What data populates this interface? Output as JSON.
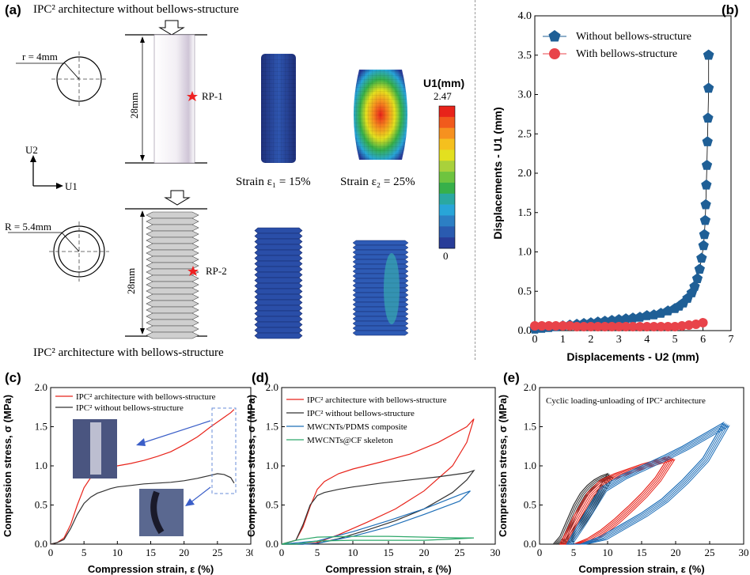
{
  "panel_a": {
    "label": "(a)",
    "top_caption": "IPC² architecture without bellows-structure",
    "bottom_caption": "IPC² architecture with bellows-structure",
    "r_label": "r = 4mm",
    "R_label": "R = 5.4mm",
    "height_top": "28mm",
    "height_bottom": "28mm",
    "rp1": "RP-1",
    "rp2": "RP-2",
    "axis_u2": "U2",
    "axis_u1": "U1",
    "strain1": "Strain ε₁ = 15%",
    "strain2": "Strain ε₂ = 25%",
    "colorbar_title": "U1(mm)",
    "colorbar_max": "2.47",
    "colorbar_min": "0",
    "colorbar_colors": [
      "#e8231a",
      "#f15a1c",
      "#f6911f",
      "#f5c01e",
      "#e3e01f",
      "#a9d13b",
      "#6ec43f",
      "#37b04a",
      "#2aa8a1",
      "#28a5d8",
      "#2c7fc4",
      "#2a5bb0",
      "#283c98"
    ]
  },
  "chart_data": [
    {
      "id": "b",
      "label": "(b)",
      "type": "scatter",
      "xlabel": "Displacements - U2 (mm)",
      "ylabel": "Displacements - U1 (mm)",
      "xlim": [
        0,
        7
      ],
      "ylim": [
        0,
        4.0
      ],
      "xticks": [
        "0",
        "1",
        "2",
        "3",
        "4",
        "5",
        "6",
        "7"
      ],
      "yticks": [
        "0.0",
        "0.5",
        "1.0",
        "1.5",
        "2.0",
        "2.5",
        "3.0",
        "3.5",
        "4.0"
      ],
      "legend_position": "top-right",
      "series": [
        {
          "name": "Without bellows-structure",
          "color": "#1f5f96",
          "marker": "pentagon",
          "x": [
            0,
            0.25,
            0.5,
            0.75,
            1,
            1.25,
            1.5,
            1.75,
            2,
            2.25,
            2.5,
            2.75,
            3,
            3.25,
            3.5,
            3.75,
            4,
            4.25,
            4.5,
            4.75,
            5,
            5.15,
            5.3,
            5.45,
            5.6,
            5.7,
            5.8,
            5.88,
            5.95,
            6.02,
            6.05,
            6.08,
            6.1,
            6.12,
            6.14,
            6.16,
            6.18,
            6.2,
            6.2,
            6.2,
            6.2,
            6.2,
            6.2
          ],
          "y": [
            0.02,
            0.03,
            0.04,
            0.05,
            0.06,
            0.07,
            0.08,
            0.09,
            0.1,
            0.11,
            0.12,
            0.13,
            0.14,
            0.15,
            0.16,
            0.17,
            0.19,
            0.2,
            0.22,
            0.25,
            0.28,
            0.31,
            0.35,
            0.41,
            0.48,
            0.56,
            0.66,
            0.78,
            0.92,
            1.08,
            1.22,
            1.4,
            1.6,
            1.85,
            2.1,
            2.4,
            2.7,
            3.08,
            3.5,
            3.5,
            3.5,
            3.5,
            3.5
          ]
        },
        {
          "name": "With bellows-structure",
          "color": "#e8434a",
          "marker": "circle",
          "x": [
            0,
            0.25,
            0.5,
            0.75,
            1,
            1.25,
            1.5,
            1.75,
            2,
            2.25,
            2.5,
            2.75,
            3,
            3.25,
            3.5,
            3.75,
            4,
            4.25,
            4.5,
            4.75,
            5,
            5.25,
            5.5,
            5.75,
            6.0
          ],
          "y": [
            0.06,
            0.06,
            0.06,
            0.06,
            0.06,
            0.06,
            0.05,
            0.05,
            0.05,
            0.05,
            0.05,
            0.05,
            0.05,
            0.05,
            0.05,
            0.05,
            0.05,
            0.05,
            0.05,
            0.05,
            0.05,
            0.06,
            0.07,
            0.08,
            0.1
          ]
        }
      ]
    },
    {
      "id": "c",
      "label": "(c)",
      "type": "line",
      "xlabel": "Compression strain, ε (%)",
      "ylabel": "Compression stress, σ (MPa)",
      "xlim": [
        0,
        30
      ],
      "ylim": [
        0,
        2.0
      ],
      "xticks": [
        "0",
        "5",
        "10",
        "15",
        "20",
        "25",
        "30"
      ],
      "yticks": [
        "0.0",
        "0.5",
        "1.0",
        "1.5",
        "2.0"
      ],
      "legend_position": "top-left",
      "series": [
        {
          "name": "IPC² architecture with bellows-structure",
          "color": "#e8231a",
          "x": [
            0,
            1,
            2,
            3,
            4,
            5,
            6,
            7,
            8,
            9,
            10,
            12,
            14,
            16,
            18,
            20,
            22,
            24,
            25,
            26,
            27,
            27.5
          ],
          "y": [
            0,
            0.02,
            0.08,
            0.25,
            0.5,
            0.72,
            0.85,
            0.92,
            0.96,
            0.98,
            1.0,
            1.03,
            1.07,
            1.12,
            1.18,
            1.27,
            1.37,
            1.5,
            1.56,
            1.62,
            1.68,
            1.72
          ]
        },
        {
          "name": "IPC² without bellows-structure",
          "color": "#333333",
          "x": [
            0,
            1,
            2,
            3,
            4,
            5,
            6,
            7,
            8,
            9,
            10,
            12,
            14,
            16,
            18,
            20,
            22,
            24,
            25,
            26,
            27,
            27.5
          ],
          "y": [
            0,
            0.02,
            0.06,
            0.2,
            0.38,
            0.52,
            0.6,
            0.65,
            0.68,
            0.71,
            0.73,
            0.75,
            0.77,
            0.78,
            0.79,
            0.81,
            0.84,
            0.88,
            0.9,
            0.89,
            0.85,
            0.78
          ]
        }
      ]
    },
    {
      "id": "d",
      "label": "(d)",
      "type": "line",
      "xlabel": "Compression strain, ε (%)",
      "ylabel": "Compression stress, σ (MPa)",
      "xlim": [
        0,
        30
      ],
      "ylim": [
        0,
        2.0
      ],
      "xticks": [
        "0",
        "5",
        "10",
        "15",
        "20",
        "25",
        "30"
      ],
      "yticks": [
        "0.0",
        "0.5",
        "1.0",
        "1.5",
        "2.0"
      ],
      "legend_position": "top-left",
      "series": [
        {
          "name": "IPC² architecture with bellows-structure",
          "color": "#e8231a",
          "x": [
            0,
            2,
            3,
            4,
            5,
            6,
            8,
            10,
            14,
            18,
            22,
            26,
            27,
            26,
            24,
            20,
            16,
            12,
            8,
            5,
            3
          ],
          "y": [
            0,
            0.05,
            0.22,
            0.48,
            0.7,
            0.8,
            0.9,
            0.96,
            1.05,
            1.15,
            1.3,
            1.5,
            1.6,
            1.3,
            1.0,
            0.68,
            0.45,
            0.28,
            0.12,
            0.02,
            0
          ]
        },
        {
          "name": "IPC² without bellows-structure",
          "color": "#333333",
          "x": [
            0,
            2,
            3,
            4,
            5,
            6,
            8,
            10,
            14,
            18,
            22,
            26,
            27,
            26,
            24,
            20,
            16,
            12,
            8,
            5,
            3
          ],
          "y": [
            0,
            0.05,
            0.25,
            0.5,
            0.62,
            0.66,
            0.7,
            0.73,
            0.78,
            0.82,
            0.86,
            0.91,
            0.94,
            0.82,
            0.66,
            0.45,
            0.3,
            0.18,
            0.07,
            0.01,
            0
          ]
        },
        {
          "name": "MWCNTs/PDMS composite",
          "color": "#1f6fb8",
          "x": [
            0,
            5,
            10,
            15,
            20,
            25,
            26.5,
            25,
            20,
            15,
            10,
            5,
            3
          ],
          "y": [
            0,
            0.04,
            0.16,
            0.3,
            0.45,
            0.63,
            0.68,
            0.55,
            0.38,
            0.22,
            0.1,
            0.01,
            0
          ]
        },
        {
          "name": "MWCNTs@CF skeleton",
          "color": "#2ea86a",
          "x": [
            0,
            2,
            5,
            10,
            15,
            20,
            25,
            27,
            25,
            20,
            15,
            10,
            5,
            2
          ],
          "y": [
            0,
            0.05,
            0.09,
            0.1,
            0.1,
            0.09,
            0.08,
            0.08,
            0.07,
            0.05,
            0.05,
            0.05,
            0.04,
            0
          ]
        }
      ]
    },
    {
      "id": "e",
      "label": "(e)",
      "type": "line",
      "title": "Cyclic loading-unloading of IPC² architecture",
      "xlabel": "Compression strain, ε (%)",
      "ylabel": "Compression stress, σ (MPa)",
      "xlim": [
        0,
        30
      ],
      "ylim": [
        0,
        2.0
      ],
      "xticks": [
        "0",
        "5",
        "10",
        "15",
        "20",
        "25",
        "30"
      ],
      "yticks": [
        "0.0",
        "0.5",
        "1.0",
        "1.5",
        "2.0"
      ],
      "series": [
        {
          "color": "#333333",
          "x": [
            2,
            3,
            4,
            5,
            6,
            7,
            8,
            9,
            10,
            9,
            8,
            7,
            6,
            5,
            4,
            3
          ],
          "y": [
            0,
            0.1,
            0.3,
            0.5,
            0.65,
            0.75,
            0.82,
            0.87,
            0.9,
            0.75,
            0.6,
            0.45,
            0.32,
            0.2,
            0.08,
            0
          ]
        },
        {
          "color": "#e8231a",
          "x": [
            3,
            5,
            7,
            9,
            11,
            13,
            15,
            17,
            19,
            17,
            15,
            13,
            11,
            9,
            7,
            5
          ],
          "y": [
            0,
            0.35,
            0.65,
            0.82,
            0.9,
            0.96,
            1.02,
            1.07,
            1.12,
            0.85,
            0.65,
            0.48,
            0.32,
            0.18,
            0.07,
            0
          ]
        },
        {
          "color": "#1f6fb8",
          "x": [
            4,
            6,
            9,
            12,
            15,
            18,
            21,
            24,
            27,
            24,
            21,
            18,
            15,
            12,
            9,
            6
          ],
          "y": [
            0,
            0.3,
            0.72,
            0.88,
            1.0,
            1.12,
            1.25,
            1.4,
            1.55,
            1.1,
            0.82,
            0.58,
            0.4,
            0.25,
            0.1,
            0
          ]
        }
      ]
    }
  ]
}
